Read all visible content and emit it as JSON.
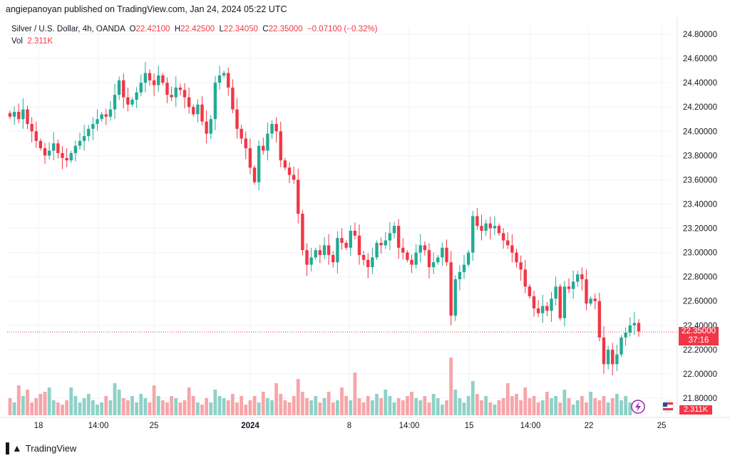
{
  "header": {
    "publisher_line": "angiepanoyan published on TradingView.com, Jan 24, 2024 05:22 UTC"
  },
  "legend": {
    "symbol": "Silver / U.S. Dollar, 4h, OANDA",
    "o_label": "O",
    "o_value": "22.42100",
    "h_label": "H",
    "h_value": "22.42500",
    "l_label": "L",
    "l_value": "22.34050",
    "c_label": "C",
    "c_value": "22.35000",
    "change": "−0.07100 (−0.32%)",
    "vol_label": "Vol",
    "vol_value": "2.311K"
  },
  "price_tag": {
    "price": "22.35000",
    "countdown": "37:16"
  },
  "vol_tag": "2.311K",
  "footer": {
    "brand": "TradingView"
  },
  "colors": {
    "up": "#22ab94",
    "down": "#f23645",
    "up_vol": "#8fd1c7",
    "down_vol": "#f7a5a9",
    "grid": "#f0f3fa"
  },
  "chart_data": {
    "type": "candlestick",
    "ylim": [
      21.7,
      24.9
    ],
    "y_ticks": [
      "24.80000",
      "24.60000",
      "24.40000",
      "24.20000",
      "24.00000",
      "23.80000",
      "23.60000",
      "23.40000",
      "23.20000",
      "23.00000",
      "22.80000",
      "22.60000",
      "22.40000",
      "22.20000",
      "22.00000",
      "21.80000"
    ],
    "x_ticks": [
      "18",
      "14:00",
      "25",
      "2024",
      "8",
      "14:00",
      "15",
      "14:00",
      "22",
      "25"
    ],
    "x_tick_bold": "2024",
    "close_path": [
      24.12,
      24.16,
      24.1,
      24.18,
      24.06,
      24.0,
      23.92,
      23.86,
      23.8,
      23.84,
      23.9,
      23.82,
      23.78,
      23.76,
      23.82,
      23.88,
      23.92,
      23.96,
      24.02,
      24.06,
      24.1,
      24.14,
      24.12,
      24.18,
      24.3,
      24.42,
      24.28,
      24.22,
      24.26,
      24.32,
      24.4,
      24.48,
      24.42,
      24.38,
      24.46,
      24.4,
      24.3,
      24.28,
      24.36,
      24.34,
      24.28,
      24.2,
      24.14,
      24.22,
      24.08,
      23.98,
      24.1,
      24.4,
      24.46,
      24.48,
      24.36,
      24.18,
      24.02,
      23.94,
      23.86,
      23.7,
      23.58,
      23.88,
      23.84,
      23.98,
      24.06,
      24.0,
      23.76,
      23.7,
      23.64,
      23.6,
      23.32,
      23.02,
      22.9,
      22.96,
      23.02,
      22.98,
      23.06,
      22.98,
      22.92,
      23.12,
      23.08,
      23.04,
      23.18,
      23.14,
      22.98,
      22.94,
      22.88,
      22.96,
      23.08,
      23.06,
      23.1,
      23.16,
      23.22,
      23.04,
      23.0,
      22.94,
      22.9,
      23.0,
      23.06,
      23.02,
      22.88,
      22.92,
      22.96,
      23.04,
      22.92,
      22.48,
      22.78,
      22.84,
      22.9,
      23.0,
      23.3,
      23.22,
      23.18,
      23.24,
      23.2,
      23.22,
      23.16,
      23.1,
      23.06,
      23.0,
      22.92,
      22.86,
      22.72,
      22.64,
      22.54,
      22.5,
      22.56,
      22.52,
      22.62,
      22.72,
      22.46,
      22.72,
      22.7,
      22.76,
      22.82,
      22.78,
      22.58,
      22.62,
      22.6,
      22.3,
      22.08,
      22.2,
      22.08,
      22.16,
      22.3,
      22.34,
      22.4,
      22.42,
      22.35
    ],
    "volume_path": [
      0.8,
      0.6,
      1.4,
      0.9,
      1.2,
      0.6,
      0.8,
      1.0,
      1.1,
      1.3,
      0.7,
      0.6,
      0.5,
      0.7,
      1.3,
      0.9,
      0.6,
      0.8,
      1.0,
      0.7,
      0.5,
      0.6,
      0.9,
      0.7,
      1.5,
      1.2,
      0.8,
      0.7,
      0.9,
      0.6,
      1.0,
      0.8,
      0.6,
      1.4,
      0.9,
      0.7,
      0.6,
      0.9,
      0.8,
      0.6,
      0.7,
      1.3,
      0.9,
      0.6,
      0.5,
      0.8,
      0.6,
      1.2,
      0.9,
      0.8,
      0.7,
      1.0,
      0.6,
      0.9,
      0.5,
      0.7,
      0.9,
      0.6,
      1.1,
      0.8,
      0.7,
      1.5,
      1.0,
      0.7,
      0.6,
      0.9,
      1.7,
      1.1,
      0.8,
      0.7,
      0.9,
      0.6,
      0.8,
      1.1,
      0.6,
      0.7,
      1.3,
      0.9,
      0.7,
      2.0,
      0.8,
      0.6,
      0.9,
      0.7,
      1.0,
      0.8,
      1.2,
      0.9,
      0.6,
      0.8,
      0.7,
      0.9,
      1.1,
      0.8,
      0.7,
      0.9,
      0.6,
      1.0,
      0.8,
      0.5,
      0.7,
      2.7,
      1.2,
      0.8,
      0.6,
      0.9,
      1.6,
      1.0,
      0.7,
      0.9,
      0.6,
      0.5,
      0.7,
      0.8,
      1.5,
      0.9,
      1.0,
      0.7,
      1.3,
      0.8,
      0.9,
      0.6,
      0.7,
      1.1,
      0.8,
      0.9,
      0.6,
      1.2,
      0.8,
      0.5,
      0.7,
      0.9,
      0.6,
      1.1,
      0.8,
      0.7,
      0.9,
      0.6,
      0.8,
      1.0,
      0.7,
      0.9,
      0.6
    ]
  }
}
